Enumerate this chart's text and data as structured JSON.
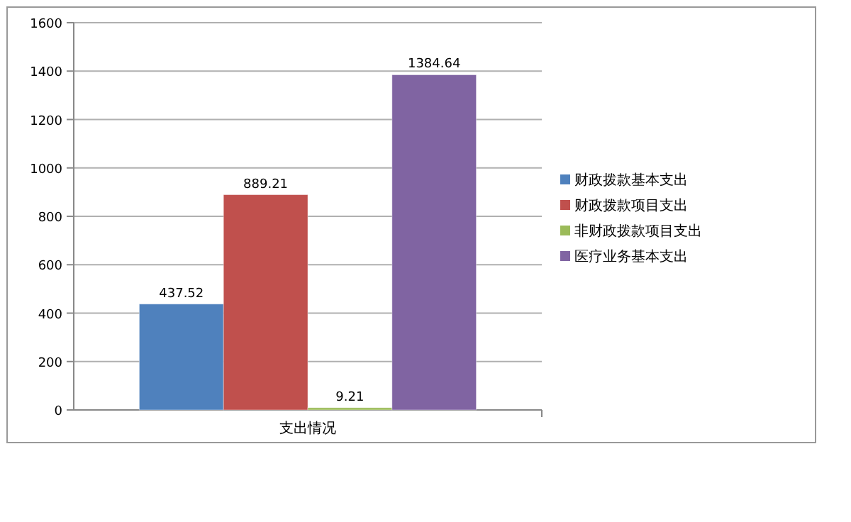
{
  "chart_data": {
    "type": "bar",
    "categories": [
      "支出情况"
    ],
    "series": [
      {
        "name": "财政拨款基本支出",
        "color": "#4f81bd",
        "values": [
          437.52
        ]
      },
      {
        "name": "财政拨款项目支出",
        "color": "#c0504d",
        "values": [
          889.21
        ]
      },
      {
        "name": "非财政拨款项目支出",
        "color": "#9bbb59",
        "values": [
          9.21
        ]
      },
      {
        "name": "医疗业务基本支出",
        "color": "#8064a2",
        "values": [
          1384.64
        ]
      }
    ],
    "ylim": [
      0,
      1600
    ],
    "yticks": [
      0,
      200,
      400,
      600,
      800,
      1000,
      1200,
      1400,
      1600
    ],
    "data_labels": true,
    "grid": "y",
    "legend": "right"
  }
}
